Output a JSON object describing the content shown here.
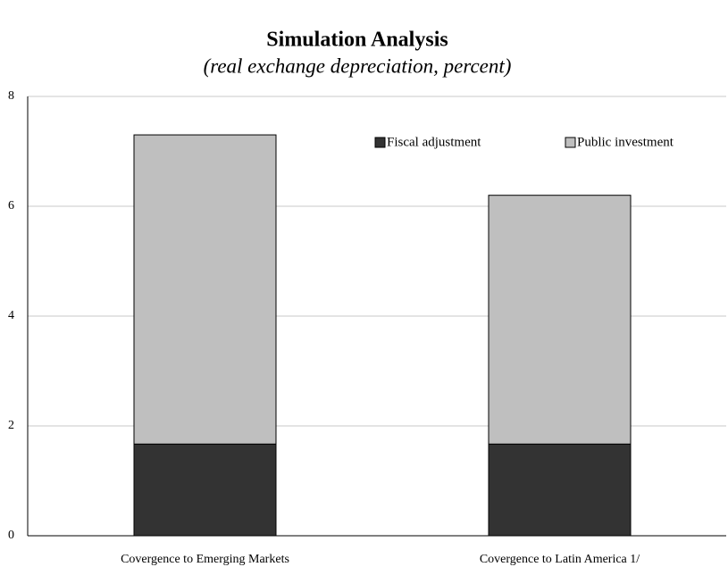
{
  "chart_data": {
    "type": "stacked_bar",
    "title": "Simulation Analysis",
    "subtitle": "(real exchange depreciation, percent)",
    "categories": [
      "Covergence to Emerging Markets",
      "Covergence to Latin America 1/"
    ],
    "series": [
      {
        "name": "Fiscal adjustment",
        "color": "#333333",
        "values": [
          1.67,
          1.67
        ]
      },
      {
        "name": "Public investment",
        "color": "#bfbfbf",
        "values": [
          5.63,
          4.53
        ]
      }
    ],
    "ylim": [
      0,
      8
    ],
    "yticks": [
      0,
      2,
      4,
      6,
      8
    ],
    "grid": true,
    "legend": "top-right"
  }
}
